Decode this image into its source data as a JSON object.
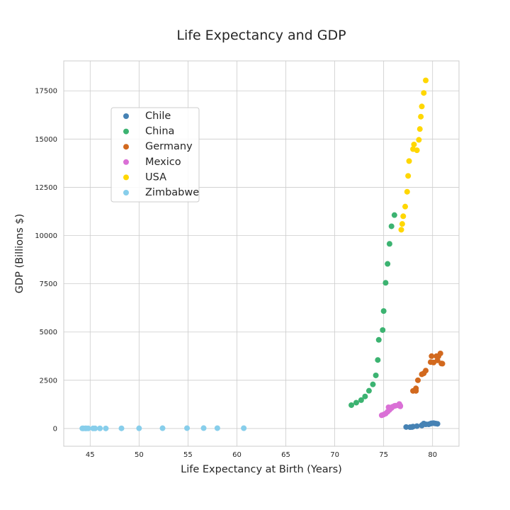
{
  "chart_data": {
    "type": "scatter",
    "title": "Life Expectancy and GDP",
    "xlabel": "Life Expectancy at Birth (Years)",
    "ylabel": "GDP (Billions $)",
    "xlim": [
      42.3,
      82.7
    ],
    "ylim": [
      -920,
      19050
    ],
    "xticks": [
      45,
      50,
      55,
      60,
      65,
      70,
      75,
      80
    ],
    "yticks": [
      0,
      2500,
      5000,
      7500,
      10000,
      12500,
      15000,
      17500
    ],
    "grid": true,
    "legend_position": "upper-left",
    "series": [
      {
        "name": "Chile",
        "color": "#4682b4",
        "points": [
          [
            77.3,
            77
          ],
          [
            77.7,
            69
          ],
          [
            77.9,
            76
          ],
          [
            78.0,
            99
          ],
          [
            78.4,
            123
          ],
          [
            78.9,
            154
          ],
          [
            78.9,
            173
          ],
          [
            79.0,
            202
          ],
          [
            79.1,
            257
          ],
          [
            79.3,
            217
          ],
          [
            79.6,
            218
          ],
          [
            79.8,
            252
          ],
          [
            79.9,
            267
          ],
          [
            80.1,
            278
          ],
          [
            80.3,
            258
          ],
          [
            80.5,
            242
          ]
        ]
      },
      {
        "name": "China",
        "color": "#3cb371",
        "points": [
          [
            71.7,
            1211
          ],
          [
            72.2,
            1339
          ],
          [
            72.7,
            1471
          ],
          [
            73.1,
            1660
          ],
          [
            73.5,
            1955
          ],
          [
            73.9,
            2286
          ],
          [
            74.2,
            2752
          ],
          [
            74.4,
            3550
          ],
          [
            74.5,
            4594
          ],
          [
            74.9,
            5102
          ],
          [
            75.0,
            6087
          ],
          [
            75.2,
            7551
          ],
          [
            75.4,
            8532
          ],
          [
            75.6,
            9570
          ],
          [
            75.8,
            10480
          ],
          [
            76.1,
            11060
          ]
        ]
      },
      {
        "name": "Germany",
        "color": "#d2691e",
        "points": [
          [
            78.0,
            1950
          ],
          [
            78.3,
            1950
          ],
          [
            78.3,
            2080
          ],
          [
            78.5,
            2500
          ],
          [
            78.9,
            2810
          ],
          [
            79.1,
            2860
          ],
          [
            79.3,
            3000
          ],
          [
            79.8,
            3440
          ],
          [
            79.9,
            3750
          ],
          [
            80.1,
            3420
          ],
          [
            80.4,
            3750
          ],
          [
            80.5,
            3530
          ],
          [
            80.6,
            3740
          ],
          [
            80.8,
            3890
          ],
          [
            81.0,
            3360
          ],
          [
            80.9,
            3370
          ]
        ]
      },
      {
        "name": "Mexico",
        "color": "#da70d6",
        "points": [
          [
            74.8,
            684
          ],
          [
            75.0,
            724
          ],
          [
            75.2,
            772
          ],
          [
            75.4,
            866
          ],
          [
            75.6,
            966
          ],
          [
            75.7,
            1053
          ],
          [
            75.7,
            1084
          ],
          [
            75.5,
            1101
          ],
          [
            75.8,
            1060
          ],
          [
            75.9,
            1120
          ],
          [
            76.1,
            1170
          ],
          [
            76.2,
            1180
          ],
          [
            76.5,
            1200
          ],
          [
            76.6,
            1270
          ],
          [
            76.7,
            1150
          ],
          [
            76.7,
            1180
          ]
        ]
      },
      {
        "name": "USA",
        "color": "#ffd700",
        "points": [
          [
            76.8,
            10300
          ],
          [
            76.9,
            10600
          ],
          [
            77.0,
            11000
          ],
          [
            77.2,
            11500
          ],
          [
            77.4,
            12270
          ],
          [
            77.5,
            13090
          ],
          [
            77.6,
            13860
          ],
          [
            78.0,
            14480
          ],
          [
            78.1,
            14720
          ],
          [
            78.4,
            14420
          ],
          [
            78.6,
            14960
          ],
          [
            78.7,
            15520
          ],
          [
            78.8,
            16160
          ],
          [
            78.9,
            16690
          ],
          [
            79.1,
            17390
          ],
          [
            79.3,
            18040
          ]
        ]
      },
      {
        "name": "Zimbabwe",
        "color": "#87ceeb",
        "points": [
          [
            46.0,
            6.7
          ],
          [
            45.3,
            6.7
          ],
          [
            44.6,
            6.3
          ],
          [
            44.2,
            5.7
          ],
          [
            44.3,
            5.8
          ],
          [
            44.5,
            5.8
          ],
          [
            44.8,
            5.8
          ],
          [
            45.5,
            5.3
          ],
          [
            46.6,
            4.4
          ],
          [
            48.2,
            8.2
          ],
          [
            50.0,
            9.7
          ],
          [
            52.4,
            14.1
          ],
          [
            54.9,
            17.1
          ],
          [
            56.6,
            19.1
          ],
          [
            58.0,
            17.1
          ],
          [
            60.7,
            16.3
          ]
        ]
      }
    ]
  }
}
